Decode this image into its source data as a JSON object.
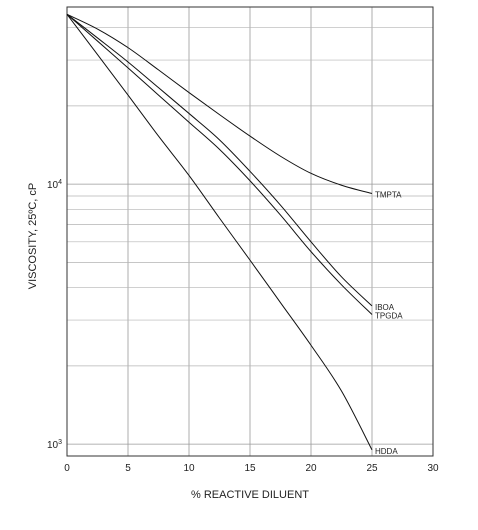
{
  "chart_data": {
    "type": "line",
    "title": "",
    "xlabel": "% REACTIVE DILUENT",
    "ylabel": "VISCOSITY, 25ºC, cP",
    "xlim": [
      0,
      30
    ],
    "ylim": [
      900,
      48000
    ],
    "y_scale": "log",
    "grid": true,
    "x_ticks": [
      "0",
      "5",
      "10",
      "15",
      "20",
      "25",
      "30"
    ],
    "y_tick_values": [
      1000,
      10000
    ],
    "y_ticks": [
      {
        "base": "10",
        "exp": "3"
      },
      {
        "base": "10",
        "exp": "4"
      }
    ],
    "series": [
      {
        "name": "TMPTA",
        "x": [
          0,
          2.5,
          5,
          7.5,
          10,
          12.5,
          15,
          17.5,
          20,
          22.5,
          25
        ],
        "y": [
          45000,
          39500,
          33500,
          27500,
          22500,
          18500,
          15300,
          12800,
          11000,
          9900,
          9200
        ]
      },
      {
        "name": "IBOA",
        "x": [
          0,
          2.5,
          5,
          7.5,
          10,
          12.5,
          15,
          17.5,
          20,
          22.5,
          25
        ],
        "y": [
          45000,
          36500,
          29500,
          23500,
          18700,
          14800,
          11200,
          8300,
          6000,
          4400,
          3400
        ]
      },
      {
        "name": "TPGDA",
        "x": [
          0,
          2.5,
          5,
          7.5,
          10,
          12.5,
          15,
          17.5,
          20,
          22.5,
          25
        ],
        "y": [
          45000,
          35500,
          28000,
          22000,
          17300,
          13600,
          10300,
          7600,
          5500,
          4100,
          3150
        ]
      },
      {
        "name": "HDDA",
        "x": [
          0,
          2.5,
          5,
          7.5,
          10,
          12.5,
          15,
          17.5,
          20,
          22.5,
          25
        ],
        "y": [
          45000,
          31500,
          22000,
          15300,
          10800,
          7400,
          5100,
          3500,
          2400,
          1600,
          950
        ]
      }
    ]
  }
}
